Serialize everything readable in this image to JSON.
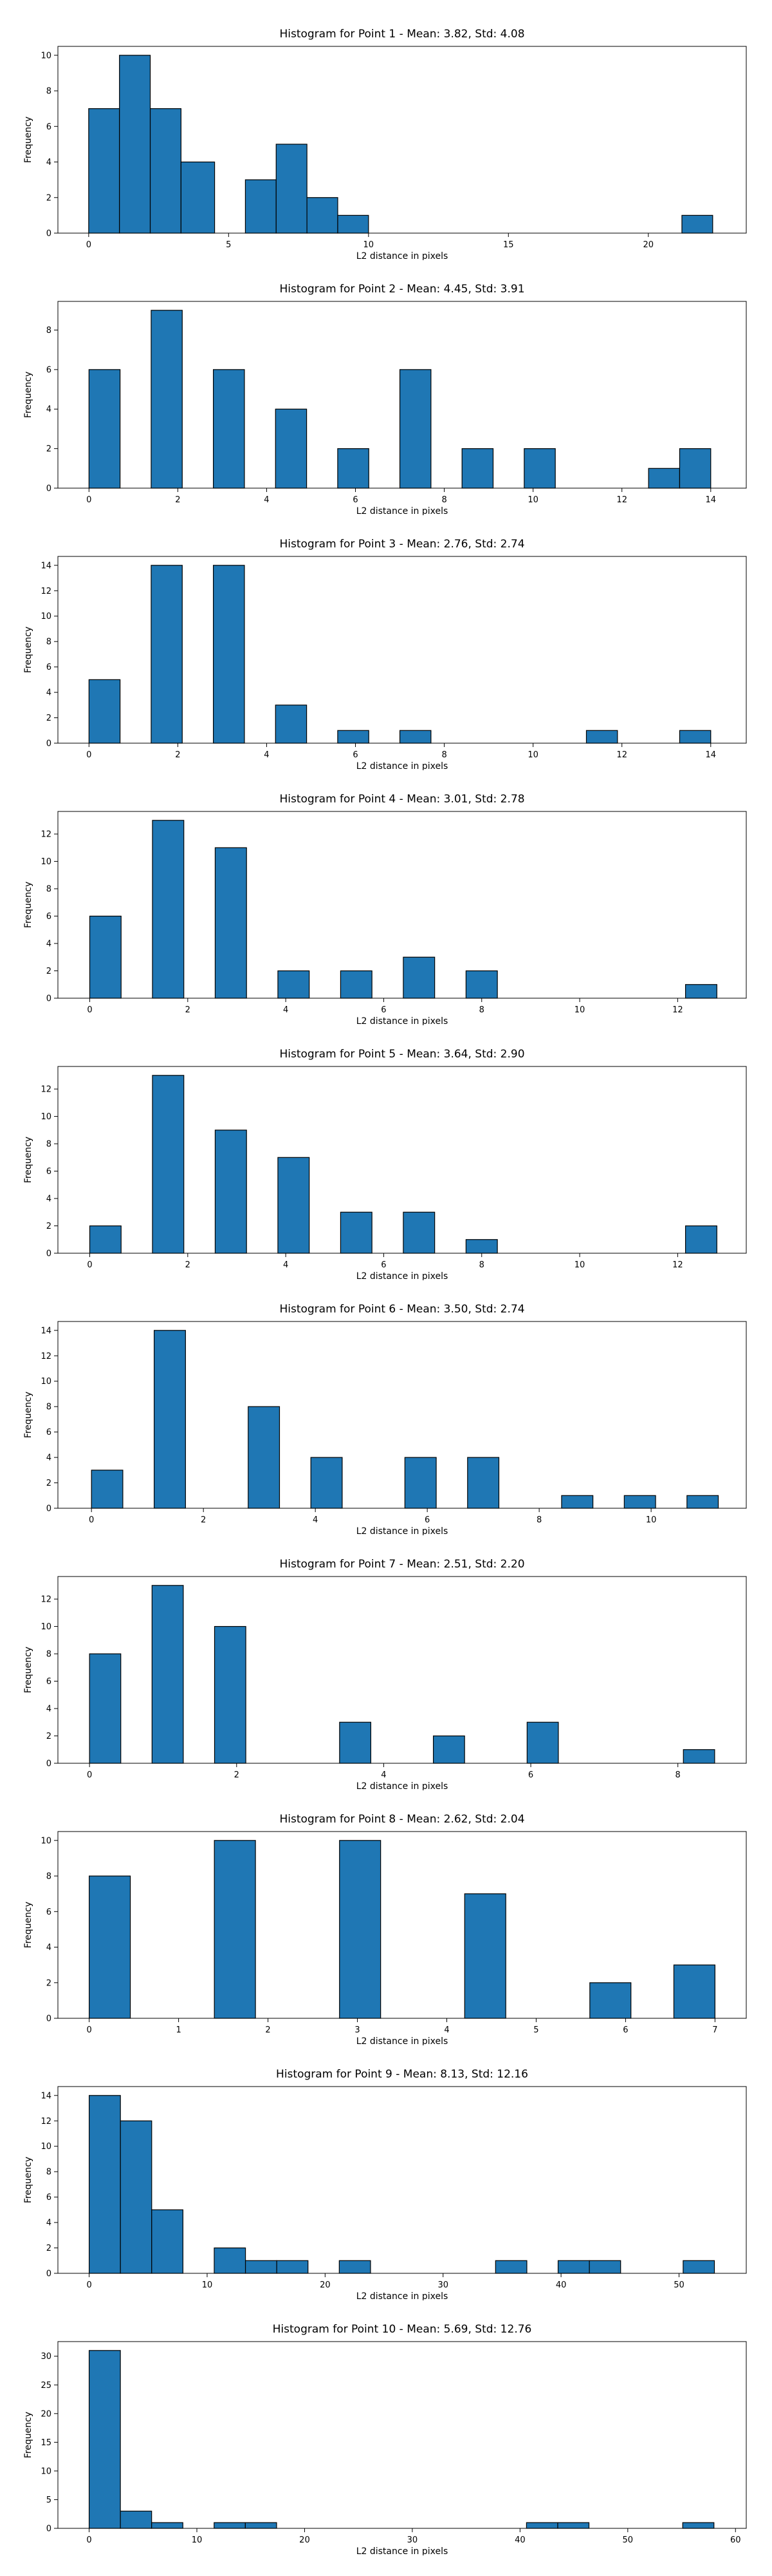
{
  "chart_data": [
    {
      "type": "bar",
      "title": "Histogram for Point 1 - Mean: 3.82, Std: 4.08",
      "xlabel": "L2 distance in pixels",
      "ylabel": "Frequency",
      "xlim": [
        -1.1,
        23.5
      ],
      "ylim": [
        0,
        10.5
      ],
      "xticks": [
        0,
        5,
        10,
        15,
        20
      ],
      "yticks": [
        0,
        2,
        4,
        6,
        8,
        10
      ],
      "bins": [
        [
          0,
          1.1,
          7
        ],
        [
          1.1,
          2.2,
          10
        ],
        [
          2.2,
          3.3,
          7
        ],
        [
          3.3,
          4.5,
          4
        ],
        [
          5.6,
          6.7,
          3
        ],
        [
          6.7,
          7.8,
          5
        ],
        [
          7.8,
          8.9,
          2
        ],
        [
          8.9,
          10.0,
          1
        ],
        [
          21.2,
          22.3,
          1
        ]
      ]
    },
    {
      "type": "bar",
      "title": "Histogram for Point 2 - Mean: 4.45, Std: 3.91",
      "xlabel": "L2 distance in pixels",
      "ylabel": "Frequency",
      "xlim": [
        -0.7,
        14.8
      ],
      "ylim": [
        0,
        9.45
      ],
      "xticks": [
        0,
        2,
        4,
        6,
        8,
        10,
        12,
        14
      ],
      "yticks": [
        0,
        2,
        4,
        6,
        8
      ],
      "bins": [
        [
          0,
          0.7,
          6
        ],
        [
          1.4,
          2.1,
          9
        ],
        [
          2.8,
          3.5,
          6
        ],
        [
          4.2,
          4.9,
          4
        ],
        [
          5.6,
          6.3,
          2
        ],
        [
          7.0,
          7.7,
          6
        ],
        [
          8.4,
          9.1,
          2
        ],
        [
          9.8,
          10.5,
          2
        ],
        [
          12.6,
          13.3,
          1
        ],
        [
          13.3,
          14.0,
          2
        ]
      ]
    },
    {
      "type": "bar",
      "title": "Histogram for Point 3 - Mean: 2.76, Std: 2.74",
      "xlabel": "L2 distance in pixels",
      "ylabel": "Frequency",
      "xlim": [
        -0.7,
        14.8
      ],
      "ylim": [
        0,
        14.7
      ],
      "xticks": [
        0,
        2,
        4,
        6,
        8,
        10,
        12,
        14
      ],
      "yticks": [
        0,
        2,
        4,
        6,
        8,
        10,
        12,
        14
      ],
      "bins": [
        [
          0,
          0.7,
          5
        ],
        [
          1.4,
          2.1,
          14
        ],
        [
          2.8,
          3.5,
          14
        ],
        [
          4.2,
          4.9,
          3
        ],
        [
          5.6,
          6.3,
          1
        ],
        [
          7.0,
          7.7,
          1
        ],
        [
          11.2,
          11.9,
          1
        ],
        [
          13.3,
          14.0,
          1
        ]
      ]
    },
    {
      "type": "bar",
      "title": "Histogram for Point 4 - Mean: 3.01, Std: 2.78",
      "xlabel": "L2 distance in pixels",
      "ylabel": "Frequency",
      "xlim": [
        -0.65,
        13.4
      ],
      "ylim": [
        0,
        13.65
      ],
      "xticks": [
        0,
        2,
        4,
        6,
        8,
        10,
        12
      ],
      "yticks": [
        0,
        2,
        4,
        6,
        8,
        10,
        12
      ],
      "bins": [
        [
          0,
          0.64,
          6
        ],
        [
          1.28,
          1.92,
          13
        ],
        [
          2.56,
          3.2,
          11
        ],
        [
          3.84,
          4.48,
          2
        ],
        [
          5.12,
          5.76,
          2
        ],
        [
          6.4,
          7.04,
          3
        ],
        [
          7.68,
          8.32,
          2
        ],
        [
          12.16,
          12.8,
          1
        ]
      ]
    },
    {
      "type": "bar",
      "title": "Histogram for Point 5 - Mean: 3.64, Std: 2.90",
      "xlabel": "L2 distance in pixels",
      "ylabel": "Frequency",
      "xlim": [
        -0.65,
        13.4
      ],
      "ylim": [
        0,
        13.65
      ],
      "xticks": [
        0,
        2,
        4,
        6,
        8,
        10,
        12
      ],
      "yticks": [
        0,
        2,
        4,
        6,
        8,
        10,
        12
      ],
      "bins": [
        [
          0,
          0.64,
          2
        ],
        [
          1.28,
          1.92,
          13
        ],
        [
          2.56,
          3.2,
          9
        ],
        [
          3.84,
          4.48,
          7
        ],
        [
          5.12,
          5.76,
          3
        ],
        [
          6.4,
          7.04,
          3
        ],
        [
          7.68,
          8.32,
          1
        ],
        [
          12.16,
          12.8,
          2
        ]
      ]
    },
    {
      "type": "bar",
      "title": "Histogram for Point 6 - Mean: 3.50, Std: 2.74",
      "xlabel": "L2 distance in pixels",
      "ylabel": "Frequency",
      "xlim": [
        -0.6,
        11.7
      ],
      "ylim": [
        0,
        14.7
      ],
      "xticks": [
        0,
        2,
        4,
        6,
        8,
        10
      ],
      "yticks": [
        0,
        2,
        4,
        6,
        8,
        10,
        12,
        14
      ],
      "bins": [
        [
          0,
          0.56,
          3
        ],
        [
          1.12,
          1.68,
          14
        ],
        [
          2.8,
          3.36,
          8
        ],
        [
          3.92,
          4.48,
          4
        ],
        [
          5.6,
          6.16,
          4
        ],
        [
          6.72,
          7.28,
          4
        ],
        [
          8.4,
          8.96,
          1
        ],
        [
          9.52,
          10.08,
          1
        ],
        [
          10.64,
          11.2,
          1
        ]
      ]
    },
    {
      "type": "bar",
      "title": "Histogram for Point 7 - Mean: 2.51, Std: 2.20",
      "xlabel": "L2 distance in pixels",
      "ylabel": "Frequency",
      "xlim": [
        -0.43,
        8.93
      ],
      "ylim": [
        0,
        13.65
      ],
      "xticks": [
        0,
        2,
        4,
        6,
        8
      ],
      "yticks": [
        0,
        2,
        4,
        6,
        8,
        10,
        12
      ],
      "bins": [
        [
          0,
          0.425,
          8
        ],
        [
          0.85,
          1.275,
          13
        ],
        [
          1.7,
          2.125,
          10
        ],
        [
          3.4,
          3.825,
          3
        ],
        [
          4.675,
          5.1,
          2
        ],
        [
          5.95,
          6.375,
          3
        ],
        [
          8.075,
          8.5,
          1
        ]
      ]
    },
    {
      "type": "bar",
      "title": "Histogram for Point 8 - Mean: 2.62, Std: 2.04",
      "xlabel": "L2 distance in pixels",
      "ylabel": "Frequency",
      "xlim": [
        -0.35,
        7.35
      ],
      "ylim": [
        0,
        10.5
      ],
      "xticks": [
        0,
        1,
        2,
        3,
        4,
        5,
        6,
        7
      ],
      "yticks": [
        0,
        2,
        4,
        6,
        8,
        10
      ],
      "bins": [
        [
          0,
          0.46,
          8
        ],
        [
          1.4,
          1.86,
          10
        ],
        [
          2.8,
          3.26,
          10
        ],
        [
          4.2,
          4.66,
          7
        ],
        [
          5.6,
          6.06,
          2
        ],
        [
          6.54,
          7.0,
          3
        ]
      ]
    },
    {
      "type": "bar",
      "title": "Histogram for Point 9 - Mean: 8.13, Std: 12.16",
      "xlabel": "L2 distance in pixels",
      "ylabel": "Frequency",
      "xlim": [
        -2.65,
        55.7
      ],
      "ylim": [
        0,
        14.7
      ],
      "xticks": [
        0,
        10,
        20,
        30,
        40,
        50
      ],
      "yticks": [
        0,
        2,
        4,
        6,
        8,
        10,
        12,
        14
      ],
      "bins": [
        [
          0,
          2.65,
          14
        ],
        [
          2.65,
          5.3,
          12
        ],
        [
          5.3,
          7.95,
          5
        ],
        [
          10.6,
          13.25,
          2
        ],
        [
          13.25,
          15.9,
          1
        ],
        [
          15.9,
          18.55,
          1
        ],
        [
          21.2,
          23.85,
          1
        ],
        [
          34.45,
          37.1,
          1
        ],
        [
          39.75,
          42.4,
          1
        ],
        [
          42.4,
          45.05,
          1
        ],
        [
          50.35,
          53.0,
          1
        ]
      ]
    },
    {
      "type": "bar",
      "title": "Histogram for Point 10 - Mean: 5.69, Std: 12.76",
      "xlabel": "L2 distance in pixels",
      "ylabel": "Frequency",
      "xlim": [
        -2.9,
        61.0
      ],
      "ylim": [
        0,
        32.55
      ],
      "xticks": [
        0,
        10,
        20,
        30,
        40,
        50,
        60
      ],
      "yticks": [
        0,
        5,
        10,
        15,
        20,
        25,
        30
      ],
      "bins": [
        [
          0,
          2.9,
          31
        ],
        [
          2.9,
          5.8,
          3
        ],
        [
          5.8,
          8.7,
          1
        ],
        [
          11.6,
          14.5,
          1
        ],
        [
          14.5,
          17.4,
          1
        ],
        [
          40.6,
          43.5,
          1
        ],
        [
          43.5,
          46.4,
          1
        ],
        [
          55.1,
          58.0,
          1
        ]
      ]
    }
  ]
}
